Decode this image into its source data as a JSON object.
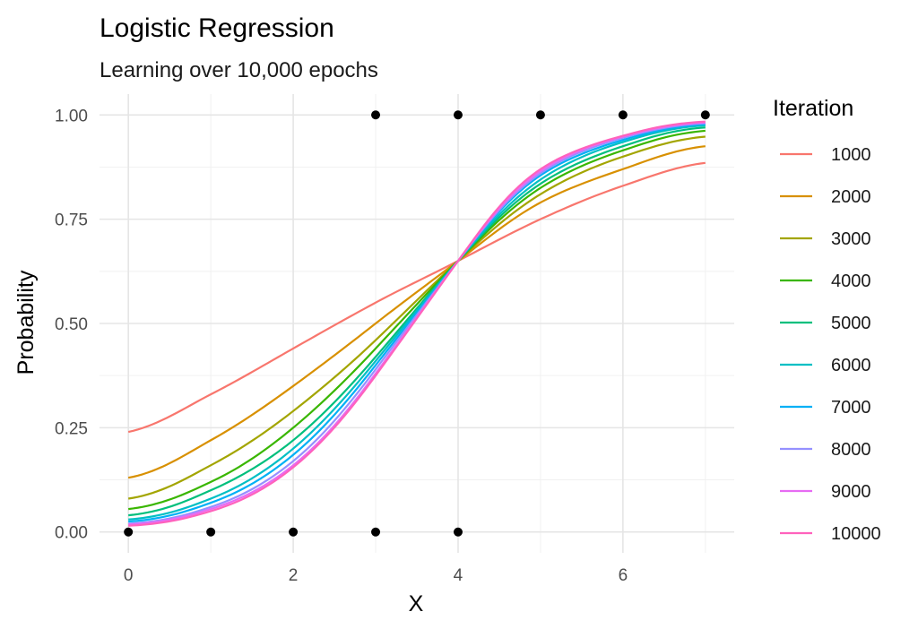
{
  "chart_data": {
    "type": "line",
    "title": "Logistic Regression",
    "subtitle": "Learning over 10,000 epochs",
    "xlabel": "X",
    "ylabel": "Probability",
    "xlim": [
      -0.35,
      7.35
    ],
    "ylim": [
      -0.05,
      1.05
    ],
    "x_ticks": [
      0,
      2,
      4,
      6
    ],
    "x_tick_labels": [
      "0",
      "2",
      "4",
      "6"
    ],
    "y_ticks": [
      0,
      0.25,
      0.5,
      0.75,
      1.0
    ],
    "y_tick_labels": [
      "0.00",
      "0.25",
      "0.50",
      "0.75",
      "1.00"
    ],
    "grid": true,
    "legend_title": "Iteration",
    "legend_position": "right",
    "x": [
      0,
      1,
      2,
      3,
      4,
      5,
      6,
      7
    ],
    "series": [
      {
        "name": "1000",
        "color": "#F8766D",
        "values": [
          0.24,
          0.33,
          0.44,
          0.55,
          0.65,
          0.75,
          0.83,
          0.885
        ]
      },
      {
        "name": "2000",
        "color": "#D89000",
        "values": [
          0.13,
          0.22,
          0.35,
          0.5,
          0.65,
          0.79,
          0.87,
          0.925
        ]
      },
      {
        "name": "3000",
        "color": "#A3A500",
        "values": [
          0.08,
          0.16,
          0.29,
          0.46,
          0.65,
          0.81,
          0.9,
          0.948
        ]
      },
      {
        "name": "4000",
        "color": "#39B600",
        "values": [
          0.055,
          0.12,
          0.25,
          0.44,
          0.65,
          0.825,
          0.915,
          0.962
        ]
      },
      {
        "name": "5000",
        "color": "#00BF7D",
        "values": [
          0.04,
          0.1,
          0.22,
          0.42,
          0.65,
          0.835,
          0.925,
          0.97
        ]
      },
      {
        "name": "6000",
        "color": "#00BFC4",
        "values": [
          0.03,
          0.08,
          0.2,
          0.41,
          0.65,
          0.845,
          0.935,
          0.975
        ]
      },
      {
        "name": "7000",
        "color": "#00B0F6",
        "values": [
          0.025,
          0.07,
          0.185,
          0.4,
          0.65,
          0.855,
          0.94,
          0.978
        ]
      },
      {
        "name": "8000",
        "color": "#9590FF",
        "values": [
          0.02,
          0.06,
          0.17,
          0.39,
          0.65,
          0.86,
          0.945,
          0.98
        ]
      },
      {
        "name": "9000",
        "color": "#E76BF3",
        "values": [
          0.018,
          0.055,
          0.16,
          0.38,
          0.65,
          0.865,
          0.948,
          0.982
        ]
      },
      {
        "name": "10000",
        "color": "#FF62BC",
        "values": [
          0.015,
          0.05,
          0.155,
          0.375,
          0.65,
          0.87,
          0.95,
          0.984
        ]
      }
    ],
    "points": [
      {
        "x": 0,
        "y": 0
      },
      {
        "x": 1,
        "y": 0
      },
      {
        "x": 2,
        "y": 0
      },
      {
        "x": 3,
        "y": 0
      },
      {
        "x": 4,
        "y": 0
      },
      {
        "x": 3,
        "y": 1
      },
      {
        "x": 4,
        "y": 1
      },
      {
        "x": 5,
        "y": 1
      },
      {
        "x": 6,
        "y": 1
      },
      {
        "x": 7,
        "y": 1
      }
    ],
    "point_color": "#000000"
  }
}
